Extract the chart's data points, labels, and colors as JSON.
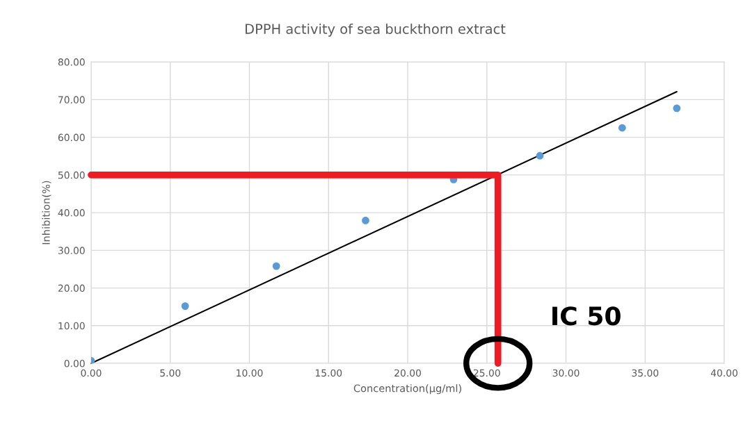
{
  "chart_data": {
    "type": "scatter",
    "title": "DPPH activity of sea buckthorn extract",
    "xlabel": "Concentration(µg/ml)",
    "ylabel": "Inhibition(%)",
    "series": [
      {
        "color": "#5b9bd5",
        "marker": "circle",
        "x": [
          0,
          5.94,
          11.7,
          17.34,
          22.9,
          28.35,
          33.55,
          37.0
        ],
        "values": [
          0.7,
          15.2,
          25.8,
          37.9,
          48.8,
          55.1,
          62.5,
          67.7
        ]
      },
      {
        "type": "line",
        "color": "#000000",
        "marker": "none",
        "x": [
          0,
          37.0
        ],
        "values": [
          0,
          72.1
        ]
      },
      {
        "type": "line",
        "color": "#ed1c24",
        "marker": "none",
        "x": [
          0,
          25.7,
          25.7
        ],
        "values": [
          50,
          50,
          0
        ]
      }
    ],
    "xlim": [
      0,
      40
    ],
    "ylim": [
      0,
      80
    ],
    "xticks": [
      {
        "value": 0,
        "label": "0.00"
      },
      {
        "value": 5,
        "label": "5.00"
      },
      {
        "value": 10,
        "label": "10.00"
      },
      {
        "value": 15,
        "label": "15.00"
      },
      {
        "value": 20,
        "label": "20.00"
      },
      {
        "value": 25,
        "label": "25.00"
      },
      {
        "value": 30,
        "label": "30.00"
      },
      {
        "value": 35,
        "label": "35.00"
      },
      {
        "value": 40,
        "label": "40.00"
      }
    ],
    "yticks": [
      {
        "value": 0,
        "label": "0.00"
      },
      {
        "value": 10,
        "label": "10.00"
      },
      {
        "value": 20,
        "label": "20.00"
      },
      {
        "value": 30,
        "label": "30.00"
      },
      {
        "value": 40,
        "label": "40.00"
      },
      {
        "value": 50,
        "label": "50.00"
      },
      {
        "value": 60,
        "label": "60.00"
      },
      {
        "value": 70,
        "label": "70.00"
      },
      {
        "value": 80,
        "label": "80.00"
      }
    ],
    "grid": true,
    "annotations": [
      "IC 50"
    ]
  }
}
